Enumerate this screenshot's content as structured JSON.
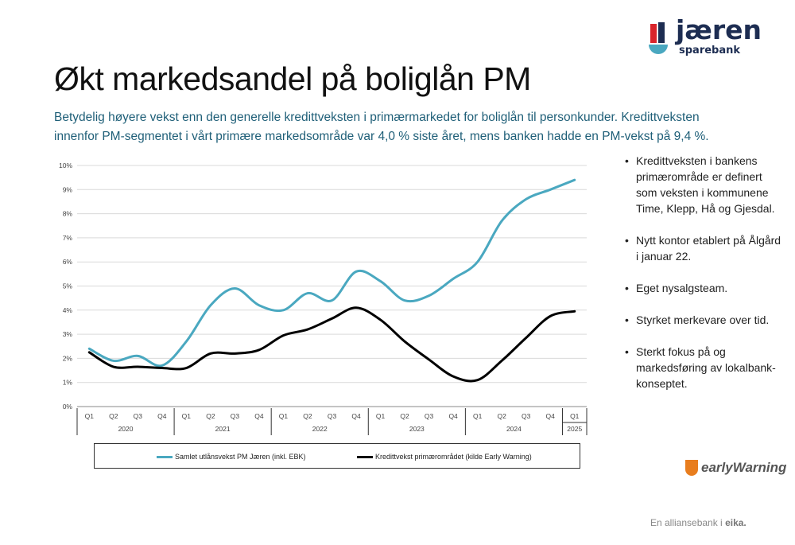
{
  "brand": {
    "name": "jæren",
    "sub": "sparebank"
  },
  "title": "Økt markedsandel på boliglån PM",
  "subtitle": "Betydelig høyere vekst enn den generelle kredittveksten i primærmarkedet for boliglån til personkunder. Kredittveksten innenfor PM-segmentet i vårt primære markedsområde var 4,0 % siste året, mens banken hadde en PM-vekst på 9,4 %.",
  "bullets": [
    "Kredittveksten i bankens primærområde er definert som veksten i kommunene Time, Klepp, Hå og Gjesdal.",
    "Nytt kontor etablert på Ålgård i januar 22.",
    "Eget nysalgsteam.",
    "Styrket merkevare over tid.",
    "Sterkt fokus på og markedsføring av lokalbank-konseptet."
  ],
  "chart_data": {
    "type": "line",
    "categories": [
      "Q1",
      "Q2",
      "Q3",
      "Q4",
      "Q1",
      "Q2",
      "Q3",
      "Q4",
      "Q1",
      "Q2",
      "Q3",
      "Q4",
      "Q1",
      "Q2",
      "Q3",
      "Q4",
      "Q1",
      "Q2",
      "Q3",
      "Q4",
      "Q1"
    ],
    "years": [
      {
        "label": "2020",
        "start": 0,
        "end": 3
      },
      {
        "label": "2021",
        "start": 4,
        "end": 7
      },
      {
        "label": "2022",
        "start": 8,
        "end": 11
      },
      {
        "label": "2023",
        "start": 12,
        "end": 15
      },
      {
        "label": "2024",
        "start": 16,
        "end": 19
      },
      {
        "label": "2025",
        "start": 20,
        "end": 20
      }
    ],
    "yticks": [
      "0%",
      "1%",
      "2%",
      "3%",
      "4%",
      "5%",
      "6%",
      "7%",
      "8%",
      "9%",
      "10%"
    ],
    "ylim": [
      0,
      10
    ],
    "grid": true,
    "legend": "bottom",
    "series": [
      {
        "name": "Samlet utlånsvekst PM Jæren (inkl. EBK)",
        "color": "#4aa8c0",
        "values": [
          2.4,
          1.9,
          2.1,
          1.7,
          2.7,
          4.2,
          4.9,
          4.2,
          4.0,
          4.7,
          4.4,
          5.6,
          5.2,
          4.4,
          4.6,
          5.3,
          6.0,
          7.7,
          8.6,
          9.0,
          9.4
        ]
      },
      {
        "name": "Kredittvekst primærområdet (kilde Early Warning)",
        "color": "#000000",
        "values": [
          2.25,
          1.65,
          1.65,
          1.6,
          1.6,
          2.2,
          2.2,
          2.35,
          2.95,
          3.2,
          3.65,
          4.1,
          3.6,
          2.7,
          1.95,
          1.25,
          1.1,
          1.9,
          2.85,
          3.75,
          3.95
        ]
      }
    ]
  },
  "partner_logo": "earlyWarning",
  "footer": {
    "text": "En alliansebank i",
    "brand": "eika."
  },
  "colors": {
    "title_blue": "#1f5f78",
    "brand_navy": "#1d2d52",
    "brand_red": "#d9242b",
    "brand_teal": "#4aa8c0",
    "ew_orange": "#e87d1e"
  }
}
